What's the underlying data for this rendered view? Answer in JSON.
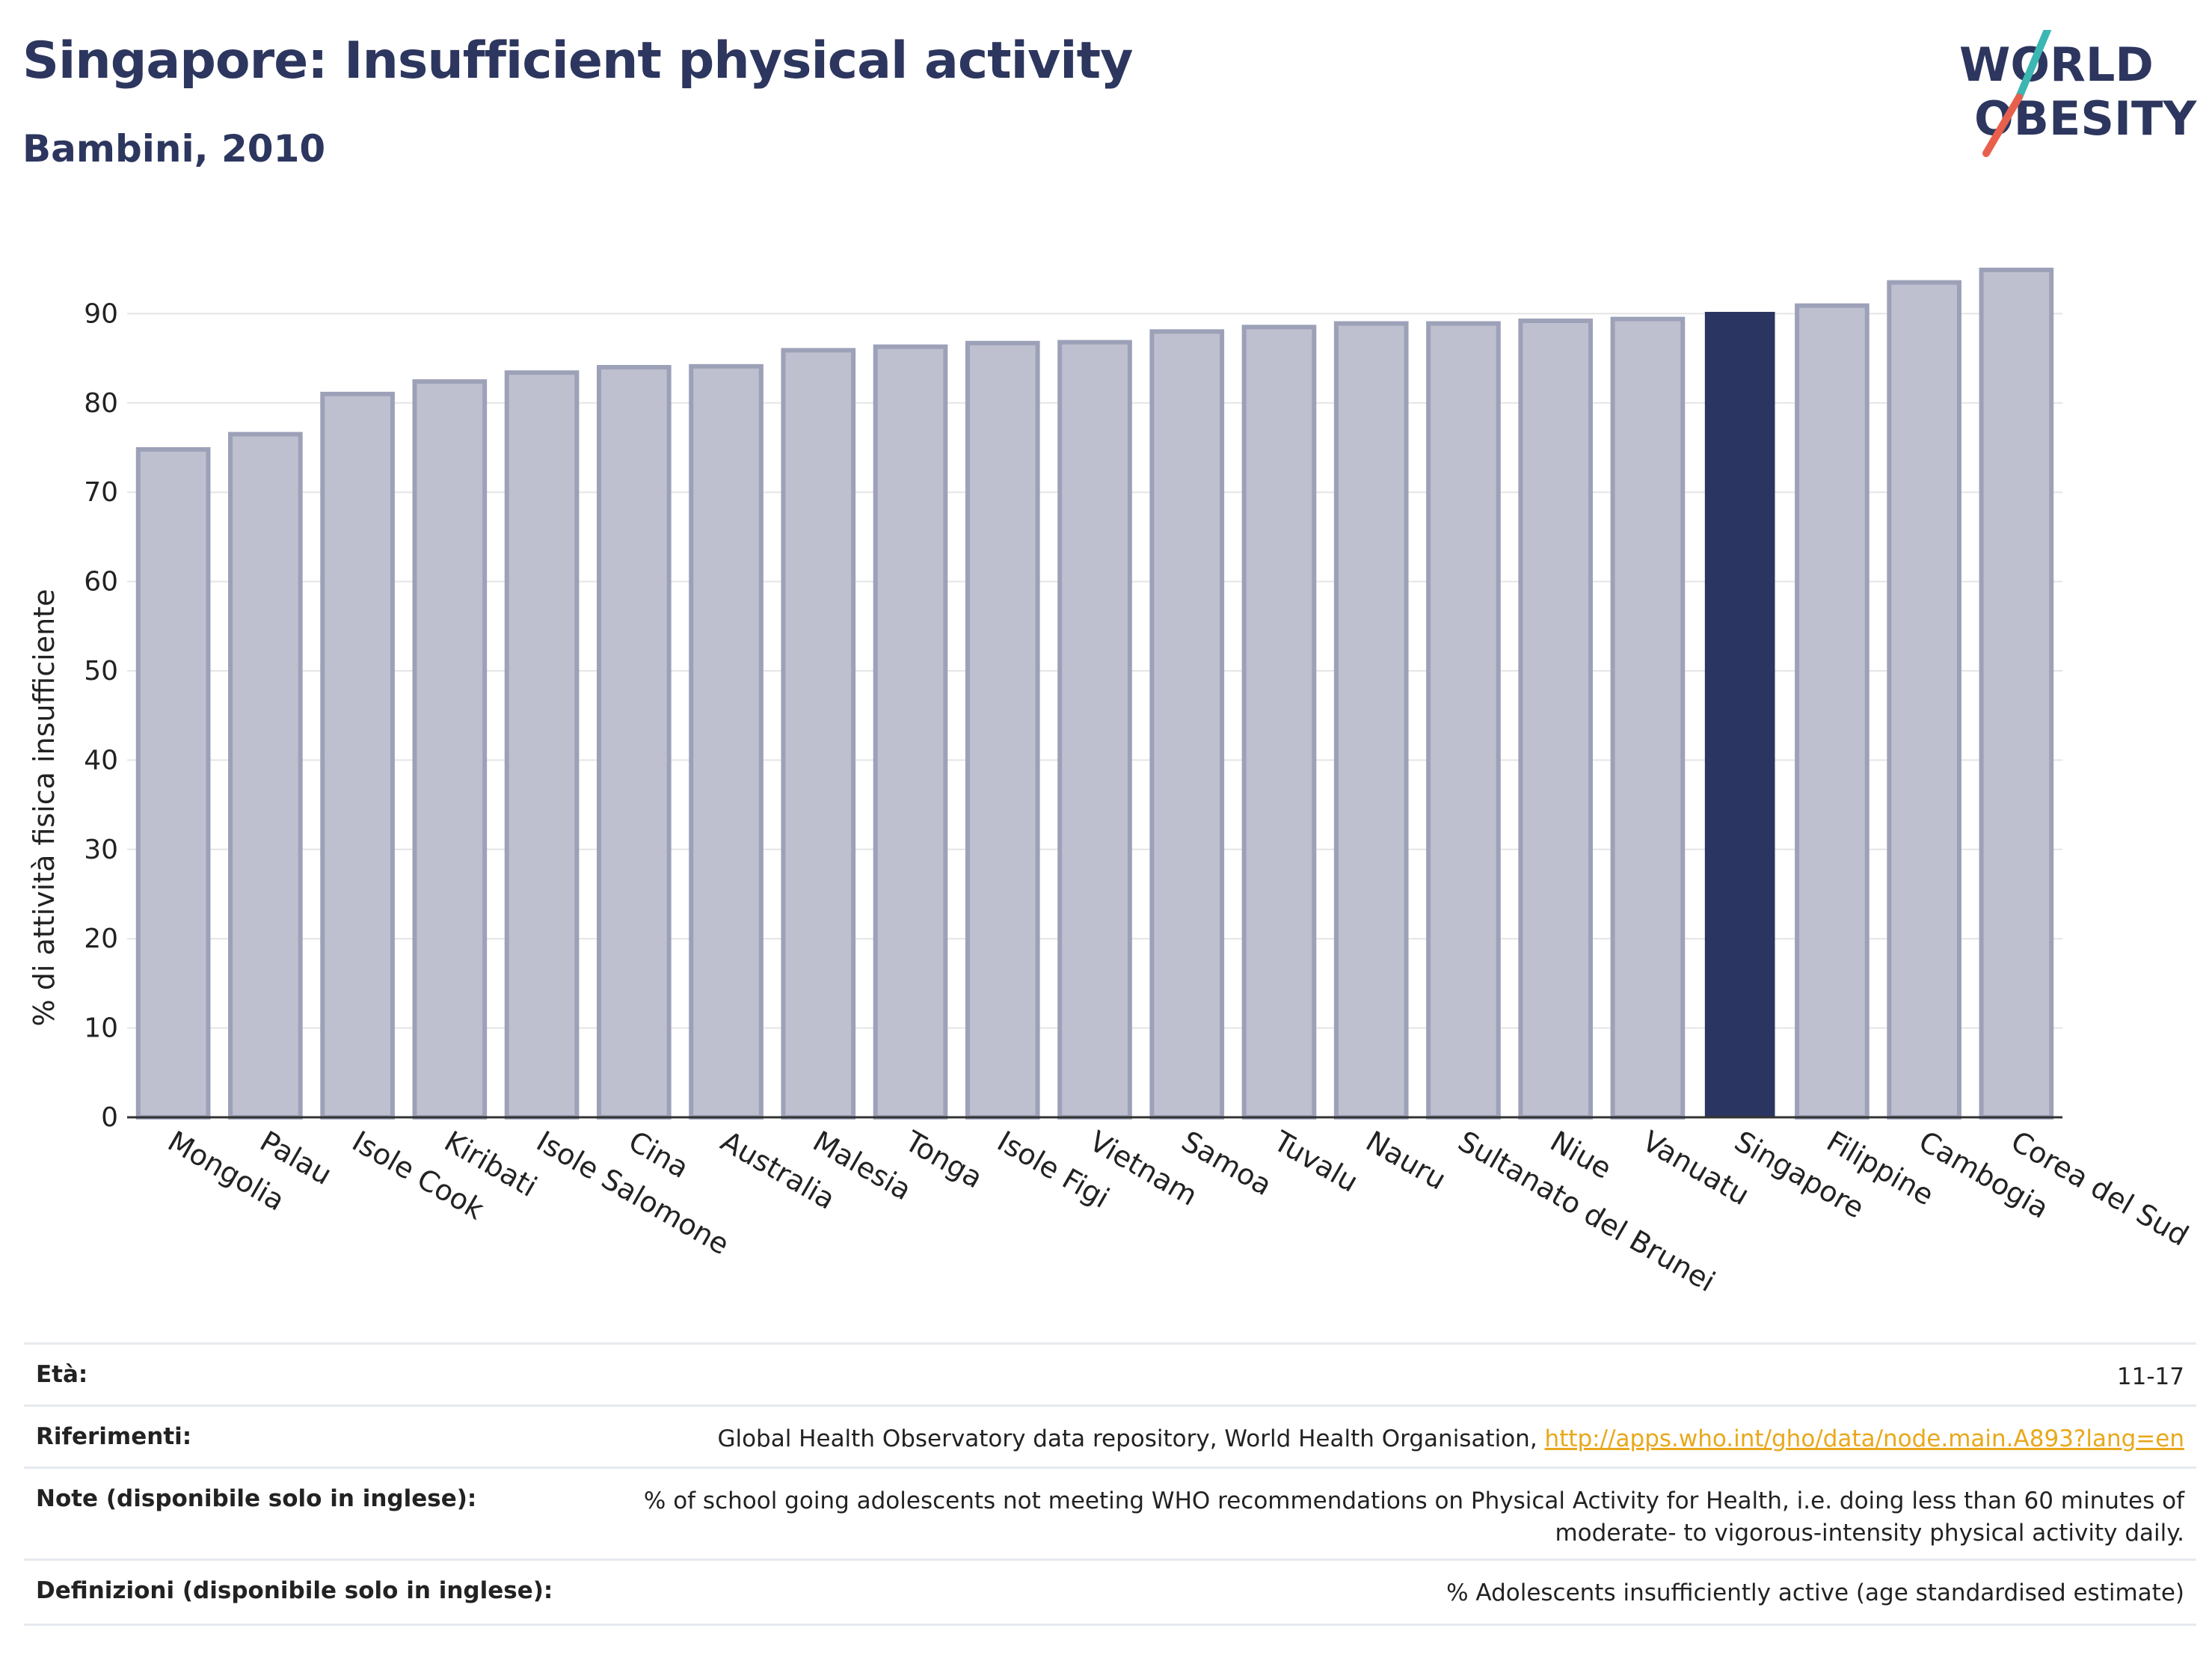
{
  "header": {
    "title": "Singapore: Insufficient physical activity",
    "subtitle": "Bambini, 2010"
  },
  "logo": {
    "line1": "WORLD",
    "line2": "OBESITY",
    "accent_teal": "#3cb6b3",
    "accent_red": "#e8604c",
    "text_color": "#2c365e"
  },
  "chart_data": {
    "type": "bar",
    "categories": [
      "Mongolia",
      "Palau",
      "Isole Cook",
      "Kiribati",
      "Isole Salomone",
      "Cina",
      "Australia",
      "Malesia",
      "Tonga",
      "Isole Figi",
      "Vietnam",
      "Samoa",
      "Tuvalu",
      "Nauru",
      "Sultanato del Brunei",
      "Niue",
      "Vanuatu",
      "Singapore",
      "Filippine",
      "Cambogia",
      "Corea del Sud"
    ],
    "values": [
      74.8,
      76.5,
      81.0,
      82.4,
      83.4,
      84.0,
      84.1,
      85.9,
      86.3,
      86.7,
      86.8,
      88.0,
      88.5,
      88.9,
      88.9,
      89.2,
      89.4,
      90.2,
      90.9,
      93.5,
      94.9
    ],
    "highlight": "Singapore",
    "ylabel": "% di attività fisica insufficiente",
    "yticks": [
      0,
      10,
      20,
      30,
      40,
      50,
      60,
      70,
      80,
      90
    ],
    "ylim": [
      0,
      100
    ],
    "grid": true,
    "colors": {
      "bar": "#bec0cf",
      "bar_edge": "#9da1b8",
      "highlight": "#2b3561",
      "grid": "#e5e5e5",
      "axis": "#333333"
    }
  },
  "meta": [
    {
      "key": "Età:",
      "value": "11-17"
    },
    {
      "key": "Riferimenti:",
      "value": "Global Health Observatory data repository, World Health Organisation,",
      "link": "http://apps.who.int/gho/data/node.main.A893?lang=en"
    },
    {
      "key": "Note (disponibile solo in inglese):",
      "value": "% of school going adolescents not meeting WHO recommendations on Physical Activity for Health, i.e. doing less than 60 minutes of",
      "value2": "moderate- to vigorous-intensity physical activity daily."
    },
    {
      "key": "Definizioni (disponibile solo in inglese):",
      "value": "% Adolescents insufficiently active (age standardised estimate)"
    }
  ]
}
